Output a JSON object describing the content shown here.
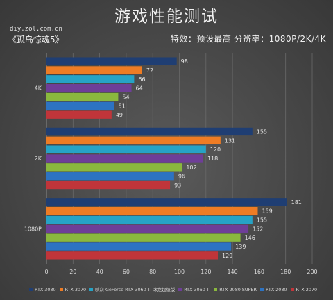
{
  "header": {
    "title": "游戏性能测试",
    "source": "diy.zol.com.cn",
    "game": "《孤岛惊魂5》",
    "settings": "特效：预设最高   分辨率：1080P/2K/4K"
  },
  "chart_data": {
    "type": "bar",
    "orientation": "horizontal",
    "categories": [
      "4K",
      "2K",
      "1080P"
    ],
    "series": [
      {
        "name": "RTX 3080",
        "color": "#1f3e73",
        "values": [
          98,
          155,
          181
        ]
      },
      {
        "name": "RTX 3070",
        "color": "#ee7c24",
        "values": [
          72,
          131,
          159
        ]
      },
      {
        "name": "映众 GeForce RTX 3060 Ti 冰龙超级版",
        "color": "#26a3c6",
        "values": [
          66,
          120,
          155
        ]
      },
      {
        "name": "RTX 3060 Ti",
        "color": "#6e3e98",
        "values": [
          64,
          118,
          152
        ]
      },
      {
        "name": "RTX 2080 SUPER",
        "color": "#8ab83e",
        "values": [
          54,
          102,
          146
        ]
      },
      {
        "name": "RTX 2080",
        "color": "#2d73c2",
        "values": [
          51,
          96,
          139
        ]
      },
      {
        "name": "RTX 2070",
        "color": "#c0353a",
        "values": [
          49,
          93,
          129
        ]
      }
    ],
    "x_ticks": [
      "0",
      "20",
      "40",
      "60",
      "80",
      "100",
      "120",
      "140",
      "160",
      "180",
      "200"
    ],
    "xlim": [
      0,
      200
    ],
    "grid": true,
    "legend_position": "bottom"
  }
}
